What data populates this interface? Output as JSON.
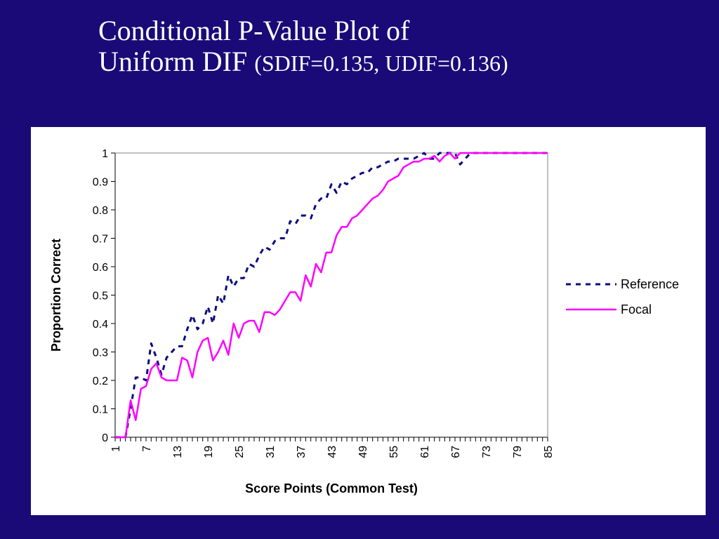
{
  "slide": {
    "title_line1": "Conditional P-Value Plot of",
    "title_line2": "Uniform DIF",
    "title_stats": "(SDIF=0.135, UDIF=0.136)"
  },
  "colors": {
    "background": "#1a0a78",
    "reference": "#0a0a80",
    "focal": "#ff00ff"
  },
  "chart_data": {
    "type": "line",
    "xlabel": "Score Points (Common Test)",
    "ylabel": "Proportion Correct",
    "ylim": [
      0,
      1
    ],
    "xlim": [
      1,
      85
    ],
    "yticks": [
      0,
      0.1,
      0.2,
      0.3,
      0.4,
      0.5,
      0.6,
      0.7,
      0.8,
      0.9,
      1
    ],
    "ytick_labels": [
      "0",
      "0.1",
      "0.2",
      "0.3",
      "0.4",
      "0.5",
      "0.6",
      "0.7",
      "0.8",
      "0.9",
      "1"
    ],
    "xtick_labels": [
      "1",
      "7",
      "13",
      "19",
      "25",
      "31",
      "37",
      "43",
      "49",
      "55",
      "61",
      "67",
      "73",
      "79",
      "85"
    ],
    "legend_position": "right",
    "grid": false,
    "series": [
      {
        "name": "Reference",
        "style": "dashed",
        "x": [
          1,
          2,
          3,
          4,
          5,
          6,
          7,
          8,
          9,
          10,
          11,
          12,
          13,
          14,
          15,
          16,
          17,
          18,
          19,
          20,
          21,
          22,
          23,
          24,
          25,
          26,
          27,
          28,
          29,
          30,
          31,
          32,
          33,
          34,
          35,
          36,
          37,
          38,
          39,
          40,
          41,
          42,
          43,
          44,
          45,
          46,
          47,
          48,
          49,
          50,
          51,
          52,
          53,
          54,
          55,
          56,
          57,
          58,
          59,
          60,
          61,
          62,
          63,
          64,
          65,
          66,
          67,
          68,
          69,
          70,
          71,
          72,
          73,
          74,
          75,
          76,
          77,
          78,
          79,
          80,
          81,
          82,
          83,
          84,
          85
        ],
        "values": [
          0,
          0,
          0,
          0.1,
          0.21,
          0.21,
          0.2,
          0.33,
          0.28,
          0.22,
          0.28,
          0.3,
          0.32,
          0.32,
          0.38,
          0.43,
          0.38,
          0.4,
          0.46,
          0.4,
          0.5,
          0.47,
          0.57,
          0.53,
          0.56,
          0.56,
          0.61,
          0.6,
          0.64,
          0.67,
          0.66,
          0.69,
          0.7,
          0.7,
          0.76,
          0.75,
          0.78,
          0.78,
          0.77,
          0.82,
          0.84,
          0.84,
          0.89,
          0.86,
          0.9,
          0.89,
          0.91,
          0.92,
          0.93,
          0.93,
          0.95,
          0.95,
          0.96,
          0.97,
          0.97,
          0.98,
          0.98,
          0.98,
          0.98,
          0.99,
          1,
          0.98,
          0.98,
          1,
          1,
          1,
          1,
          0.96,
          0.98,
          1,
          1,
          1,
          1,
          1,
          1,
          1,
          1,
          1,
          1,
          1,
          1,
          1,
          1,
          1,
          1
        ]
      },
      {
        "name": "Focal",
        "style": "solid",
        "x": [
          1,
          2,
          3,
          4,
          5,
          6,
          7,
          8,
          9,
          10,
          11,
          12,
          13,
          14,
          15,
          16,
          17,
          18,
          19,
          20,
          21,
          22,
          23,
          24,
          25,
          26,
          27,
          28,
          29,
          30,
          31,
          32,
          33,
          34,
          35,
          36,
          37,
          38,
          39,
          40,
          41,
          42,
          43,
          44,
          45,
          46,
          47,
          48,
          49,
          50,
          51,
          52,
          53,
          54,
          55,
          56,
          57,
          58,
          59,
          60,
          61,
          62,
          63,
          64,
          65,
          66,
          67,
          68,
          69,
          70,
          71,
          72,
          73,
          74,
          75,
          76,
          77,
          78,
          79,
          80,
          81,
          82,
          83,
          84,
          85
        ],
        "values": [
          0,
          0,
          0,
          0.13,
          0.06,
          0.17,
          0.18,
          0.24,
          0.26,
          0.21,
          0.2,
          0.2,
          0.2,
          0.28,
          0.27,
          0.21,
          0.3,
          0.34,
          0.35,
          0.27,
          0.3,
          0.34,
          0.29,
          0.4,
          0.35,
          0.4,
          0.41,
          0.41,
          0.37,
          0.44,
          0.44,
          0.43,
          0.45,
          0.48,
          0.51,
          0.51,
          0.48,
          0.57,
          0.53,
          0.61,
          0.58,
          0.65,
          0.65,
          0.71,
          0.74,
          0.74,
          0.77,
          0.78,
          0.8,
          0.82,
          0.84,
          0.85,
          0.87,
          0.9,
          0.91,
          0.92,
          0.95,
          0.96,
          0.97,
          0.97,
          0.98,
          0.98,
          0.99,
          0.97,
          0.99,
          1,
          0.98,
          1,
          1,
          1,
          1,
          1,
          1,
          1,
          1,
          1,
          1,
          1,
          1,
          1,
          1,
          1,
          1,
          1,
          1
        ]
      }
    ]
  }
}
